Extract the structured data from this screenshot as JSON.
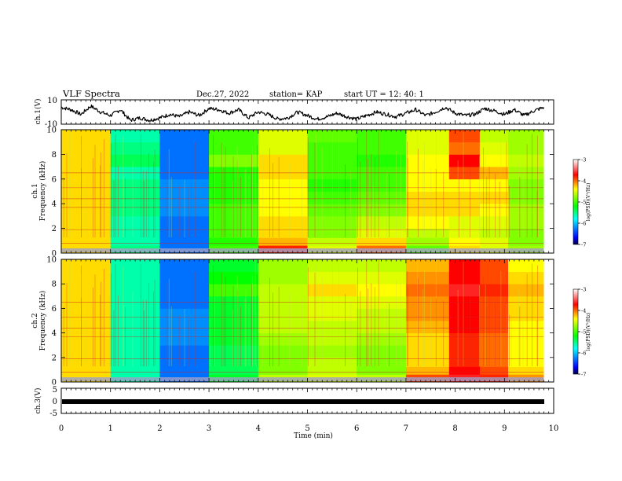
{
  "header": {
    "title": "VLF Spectra",
    "date": "Dec.27, 2022",
    "station": "station= KAP",
    "start": "start UT =   12: 40: 1"
  },
  "colors": {
    "waveform": "#000000",
    "colormap": [
      "#000044",
      "#0000ff",
      "#00ffff",
      "#00ff00",
      "#ffff00",
      "#ff0000",
      "#ffffff"
    ]
  },
  "chart_data": [
    {
      "type": "line",
      "name": "ch1-waveform",
      "ylabel": "ch.1(V)",
      "ylim": [
        -10,
        10
      ],
      "yticks": [
        "10",
        "-10"
      ],
      "xlim": [
        0,
        10
      ],
      "x_min": [
        0.0,
        0.2,
        0.4,
        0.6,
        0.8,
        1.0,
        1.2,
        1.4,
        1.6,
        1.8,
        2.0,
        2.2,
        2.4,
        2.6,
        2.8,
        3.0,
        3.2,
        3.4,
        3.6,
        3.8,
        4.0,
        4.2,
        4.4,
        4.6,
        4.8,
        5.0,
        5.2,
        5.4,
        5.6,
        5.8,
        6.0,
        6.2,
        6.4,
        6.6,
        6.8,
        7.0,
        7.2,
        7.4,
        7.6,
        7.8,
        8.0,
        8.2,
        8.4,
        8.6,
        8.8,
        9.0,
        9.2,
        9.4,
        9.6,
        9.8
      ],
      "values": [
        4,
        2,
        -2,
        5,
        0,
        -3,
        2,
        -7,
        -5,
        -7,
        -5,
        -2,
        -4,
        0,
        -3,
        3,
        2,
        -1,
        2,
        -5,
        0,
        -2,
        -6,
        -5,
        0,
        -3,
        -6,
        -4,
        -1,
        -4,
        -6,
        -3,
        0,
        -2,
        -4,
        -1,
        2,
        -3,
        0,
        4,
        -1,
        -3,
        -2,
        3,
        1,
        -2,
        2,
        -3,
        1,
        4
      ]
    },
    {
      "type": "heatmap",
      "name": "ch1-spectrogram",
      "ylabel": "ch.1 Frequency (kHz)",
      "ylim": [
        0,
        10
      ],
      "yticks": [
        "0",
        "2",
        "4",
        "6",
        "8",
        "10"
      ],
      "xlim": [
        0,
        10
      ],
      "colorbar": {
        "label": "log(PSD)(V²/Hz)",
        "range": [
          -7,
          -3
        ],
        "ticks": [
          "-3",
          "-4",
          "-5",
          "-6",
          "-7"
        ]
      },
      "freq_bands_khz": [
        0.25,
        1.0,
        1.5,
        2.5,
        3.5,
        4.5,
        5.5,
        6.5,
        7.5,
        8.5,
        9.5
      ],
      "time_blocks_min": [
        0.5,
        1.5,
        2.5,
        3.5,
        4.5,
        5.5,
        6.5,
        7.5,
        8.25,
        8.75,
        9.4
      ],
      "log_psd": [
        [
          -4.3,
          -5.5,
          -6.3,
          -5.0,
          -3.8,
          -4.5,
          -4.0,
          -4.9,
          -4.3,
          -4.5,
          -4.7
        ],
        [
          -4.3,
          -5.6,
          -6.3,
          -5.1,
          -4.2,
          -4.6,
          -4.3,
          -4.7,
          -4.4,
          -4.5,
          -4.8
        ],
        [
          -4.3,
          -5.6,
          -6.3,
          -5.0,
          -4.3,
          -4.8,
          -4.5,
          -4.6,
          -4.5,
          -4.6,
          -4.8
        ],
        [
          -4.3,
          -5.6,
          -6.3,
          -5.0,
          -4.3,
          -4.8,
          -4.6,
          -4.4,
          -4.5,
          -4.5,
          -4.7
        ],
        [
          -4.3,
          -5.5,
          -6.2,
          -5.0,
          -4.4,
          -4.9,
          -4.8,
          -4.3,
          -4.3,
          -4.4,
          -4.7
        ],
        [
          -4.3,
          -5.5,
          -6.2,
          -5.1,
          -4.4,
          -5.0,
          -4.9,
          -4.3,
          -4.3,
          -4.3,
          -4.8
        ],
        [
          -4.3,
          -5.5,
          -6.2,
          -5.1,
          -4.4,
          -5.1,
          -5.0,
          -4.4,
          -4.4,
          -4.4,
          -4.8
        ],
        [
          -4.3,
          -5.6,
          -6.3,
          -5.1,
          -4.3,
          -5.0,
          -5.0,
          -4.4,
          -3.9,
          -4.2,
          -4.7
        ],
        [
          -4.3,
          -5.4,
          -6.3,
          -4.8,
          -4.3,
          -5.0,
          -5.1,
          -4.4,
          -3.7,
          -4.4,
          -4.6
        ],
        [
          -4.3,
          -5.5,
          -6.3,
          -5.0,
          -4.5,
          -5.0,
          -5.0,
          -4.5,
          -4.0,
          -4.5,
          -4.7
        ],
        [
          -4.3,
          -5.6,
          -6.3,
          -5.0,
          -4.5,
          -4.9,
          -5.0,
          -4.5,
          -3.9,
          -4.6,
          -4.7
        ]
      ]
    },
    {
      "type": "heatmap",
      "name": "ch2-spectrogram",
      "ylabel": "ch.2 Frequency (kHz)",
      "ylim": [
        0,
        10
      ],
      "yticks": [
        "0",
        "2",
        "4",
        "6",
        "8",
        "10"
      ],
      "xlim": [
        0,
        10
      ],
      "colorbar": {
        "label": "log(PSD)(V²/Hz)",
        "range": [
          -7,
          -3
        ],
        "ticks": [
          "-3",
          "-4",
          "-5",
          "-6",
          "-7"
        ]
      },
      "freq_bands_khz": [
        0.25,
        1.0,
        1.5,
        2.5,
        3.5,
        4.5,
        5.5,
        6.5,
        7.5,
        8.5,
        9.5
      ],
      "time_blocks_min": [
        0.5,
        1.5,
        2.5,
        3.5,
        4.5,
        5.5,
        6.5,
        7.5,
        8.25,
        8.75,
        9.4
      ],
      "log_psd": [
        [
          -4.3,
          -5.6,
          -6.3,
          -5.3,
          -4.6,
          -4.5,
          -4.6,
          -3.9,
          -3.6,
          -3.8,
          -4.1
        ],
        [
          -4.3,
          -5.6,
          -6.3,
          -5.4,
          -4.8,
          -4.6,
          -4.8,
          -4.2,
          -3.7,
          -3.9,
          -4.3
        ],
        [
          -4.3,
          -5.6,
          -6.3,
          -5.4,
          -4.8,
          -4.6,
          -4.8,
          -4.3,
          -3.8,
          -4.0,
          -4.4
        ],
        [
          -4.3,
          -5.6,
          -6.3,
          -5.4,
          -4.8,
          -4.7,
          -4.8,
          -4.3,
          -3.8,
          -4.0,
          -4.4
        ],
        [
          -4.3,
          -5.6,
          -6.2,
          -5.3,
          -4.7,
          -4.6,
          -4.7,
          -4.3,
          -3.8,
          -4.0,
          -4.4
        ],
        [
          -4.3,
          -5.6,
          -6.2,
          -5.3,
          -4.6,
          -4.6,
          -4.6,
          -4.2,
          -3.7,
          -3.9,
          -4.4
        ],
        [
          -4.3,
          -5.6,
          -6.2,
          -5.3,
          -4.6,
          -4.5,
          -4.6,
          -4.1,
          -3.7,
          -3.9,
          -4.3
        ],
        [
          -4.3,
          -5.6,
          -6.3,
          -5.3,
          -4.6,
          -4.5,
          -4.5,
          -4.1,
          -3.7,
          -3.9,
          -4.3
        ],
        [
          -4.3,
          -5.6,
          -6.3,
          -5.0,
          -4.6,
          -4.3,
          -4.4,
          -4.0,
          -3.6,
          -3.8,
          -4.2
        ],
        [
          -4.3,
          -5.6,
          -6.3,
          -5.2,
          -4.7,
          -4.5,
          -4.5,
          -4.1,
          -3.7,
          -3.9,
          -4.3
        ],
        [
          -4.3,
          -5.6,
          -6.3,
          -5.3,
          -4.7,
          -4.6,
          -4.6,
          -4.2,
          -3.7,
          -3.9,
          -4.4
        ]
      ]
    },
    {
      "type": "line",
      "name": "ch3-signal",
      "ylabel": "ch.3(V)",
      "ylim": [
        -5,
        5
      ],
      "yticks": [
        "5",
        "0",
        "-5"
      ],
      "xlim": [
        0,
        10
      ],
      "x_min": [
        0,
        9.8
      ],
      "values": [
        0,
        0
      ]
    }
  ],
  "xaxis": {
    "label": "Time  (min)",
    "ticks": [
      "0",
      "1",
      "2",
      "3",
      "4",
      "5",
      "6",
      "7",
      "8",
      "9",
      "10"
    ]
  }
}
